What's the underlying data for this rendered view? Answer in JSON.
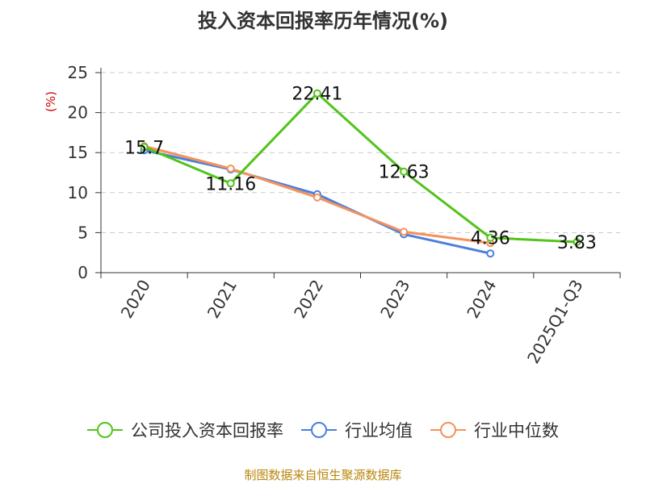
{
  "title": "投入资本回报率历年情况(%)",
  "source": "制图数据来自恒生聚源数据库",
  "chart_data": {
    "type": "line",
    "ylabel": "(%)",
    "ylim": [
      0,
      25
    ],
    "yticks": [
      0,
      5,
      10,
      15,
      20,
      25
    ],
    "categories": [
      "2020",
      "2021",
      "2022",
      "2023",
      "2024",
      "2025Q1-Q3"
    ],
    "grid": true,
    "legend_position": "bottom",
    "series": [
      {
        "name": "公司投入资本回报率",
        "color": "#52c41a",
        "values": [
          15.7,
          11.16,
          22.41,
          12.63,
          4.36,
          3.83
        ],
        "labels": [
          "15.7",
          "11.16",
          "22.41",
          "12.63",
          "4.36",
          "3.83"
        ]
      },
      {
        "name": "行业均值",
        "color": "#4a7fdc",
        "values": [
          15.3,
          12.9,
          9.8,
          4.8,
          2.4,
          null
        ]
      },
      {
        "name": "行业中位数",
        "color": "#f4925b",
        "values": [
          15.8,
          13.0,
          9.4,
          5.1,
          3.7,
          null
        ]
      }
    ]
  }
}
